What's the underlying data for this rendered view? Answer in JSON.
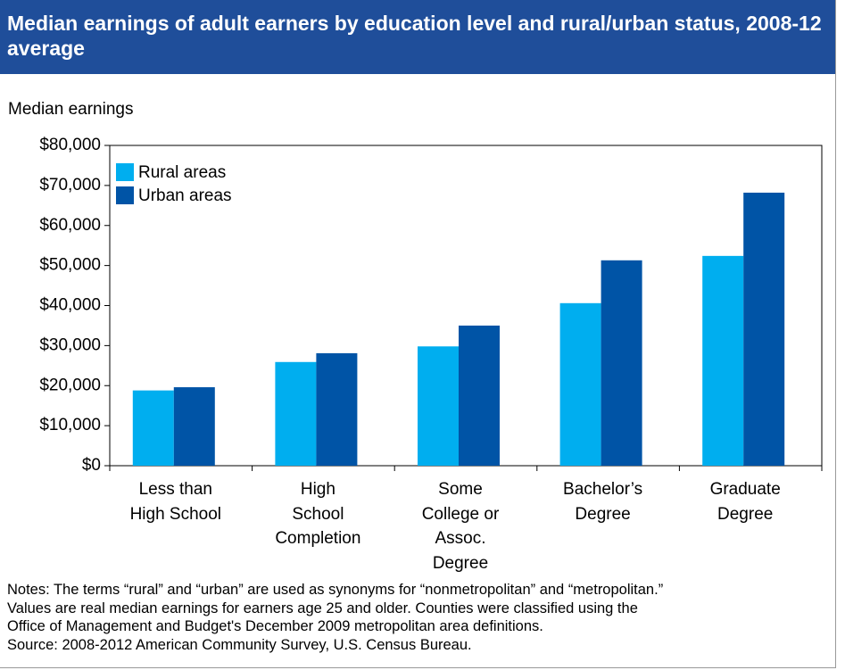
{
  "chart_data": {
    "type": "bar",
    "title": "Median earnings of adult earners by education level and rural/urban status, 2008-12 average",
    "y_axis_label": "Median earnings",
    "categories": [
      "Less than\nHigh School",
      "High\nSchool\nCompletion",
      "Some\nCollege or\nAssoc.\nDegree",
      "Bachelor’s\nDegree",
      "Graduate\nDegree"
    ],
    "series": [
      {
        "name": "Rural areas",
        "color": "#00aeef",
        "values": [
          18800,
          25900,
          29800,
          40600,
          52400
        ]
      },
      {
        "name": "Urban areas",
        "color": "#0054a6",
        "values": [
          19600,
          28100,
          35000,
          51300,
          68200
        ]
      }
    ],
    "ylim": [
      0,
      80000
    ],
    "yticks": [
      {
        "value": 0,
        "label": "$0"
      },
      {
        "value": 10000,
        "label": "$10,000"
      },
      {
        "value": 20000,
        "label": "$20,000"
      },
      {
        "value": 30000,
        "label": "$30,000"
      },
      {
        "value": 40000,
        "label": "$40,000"
      },
      {
        "value": 50000,
        "label": "$50,000"
      },
      {
        "value": 60000,
        "label": "$60,000"
      },
      {
        "value": 70000,
        "label": "$70,000"
      },
      {
        "value": 80000,
        "label": "$80,000"
      }
    ],
    "legend": "upper left",
    "notes": [
      "Notes: The terms “rural” and “urban” are used as synonyms for “nonmetropolitan” and “metropolitan.”",
      "Values are real median earnings for earners age 25 and older. Counties were classified using the",
      "Office of Management and Budget's December 2009 metropolitan area definitions.",
      "Source: 2008-2012 American Community Survey, U.S. Census Bureau."
    ]
  }
}
